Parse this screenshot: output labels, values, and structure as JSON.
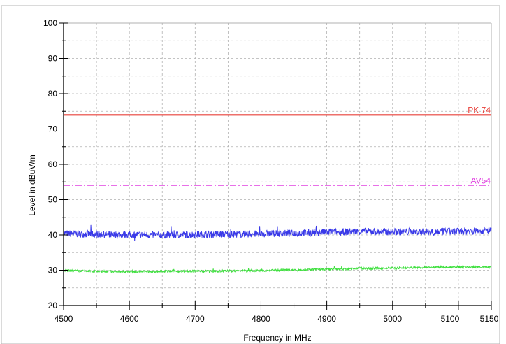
{
  "chart_data": {
    "type": "line",
    "xlabel": "Frequency in MHz",
    "ylabel": "Level in dBuV/m",
    "xlim": [
      4500,
      5150
    ],
    "ylim": [
      20,
      100
    ],
    "x_ticks": [
      4500,
      4600,
      4700,
      4800,
      4900,
      5000,
      5100,
      5150
    ],
    "x_tick_labels": [
      "4500",
      "4600",
      "4700",
      "4800",
      "4900",
      "5000",
      "5100",
      "5150"
    ],
    "y_ticks": [
      20,
      30,
      40,
      50,
      60,
      70,
      80,
      90,
      100
    ],
    "y_tick_labels": [
      "20",
      "30",
      "40",
      "50",
      "60",
      "70",
      "80",
      "90",
      "100"
    ],
    "grid": true,
    "limit_lines": [
      {
        "label": "PK 74",
        "value": 74,
        "color": "#e8403a",
        "style": "solid"
      },
      {
        "label": "AV54",
        "value": 54,
        "color": "#e040e0",
        "style": "dashdot"
      }
    ],
    "series": [
      {
        "color": "#3a3ae8",
        "x": [
          4500,
          4550,
          4600,
          4650,
          4700,
          4750,
          4800,
          4850,
          4900,
          4950,
          5000,
          5050,
          5100,
          5150
        ],
        "y": [
          40.4,
          40.2,
          40.1,
          40.0,
          40.1,
          40.2,
          40.3,
          40.5,
          40.8,
          41.0,
          40.9,
          40.9,
          41.1,
          41.2
        ],
        "noise": 1.0
      },
      {
        "color": "#40e040",
        "x": [
          4500,
          4550,
          4600,
          4650,
          4700,
          4750,
          4800,
          4850,
          4900,
          4950,
          5000,
          5050,
          5100,
          5150
        ],
        "y": [
          29.9,
          29.7,
          29.6,
          29.7,
          29.7,
          29.8,
          29.9,
          30.1,
          30.3,
          30.5,
          30.6,
          30.8,
          30.9,
          30.9
        ],
        "noise": 0.3
      }
    ],
    "colors": {
      "axis": "#000000",
      "grid": "#b0b0b0",
      "frame": "#b4b4b4"
    }
  }
}
